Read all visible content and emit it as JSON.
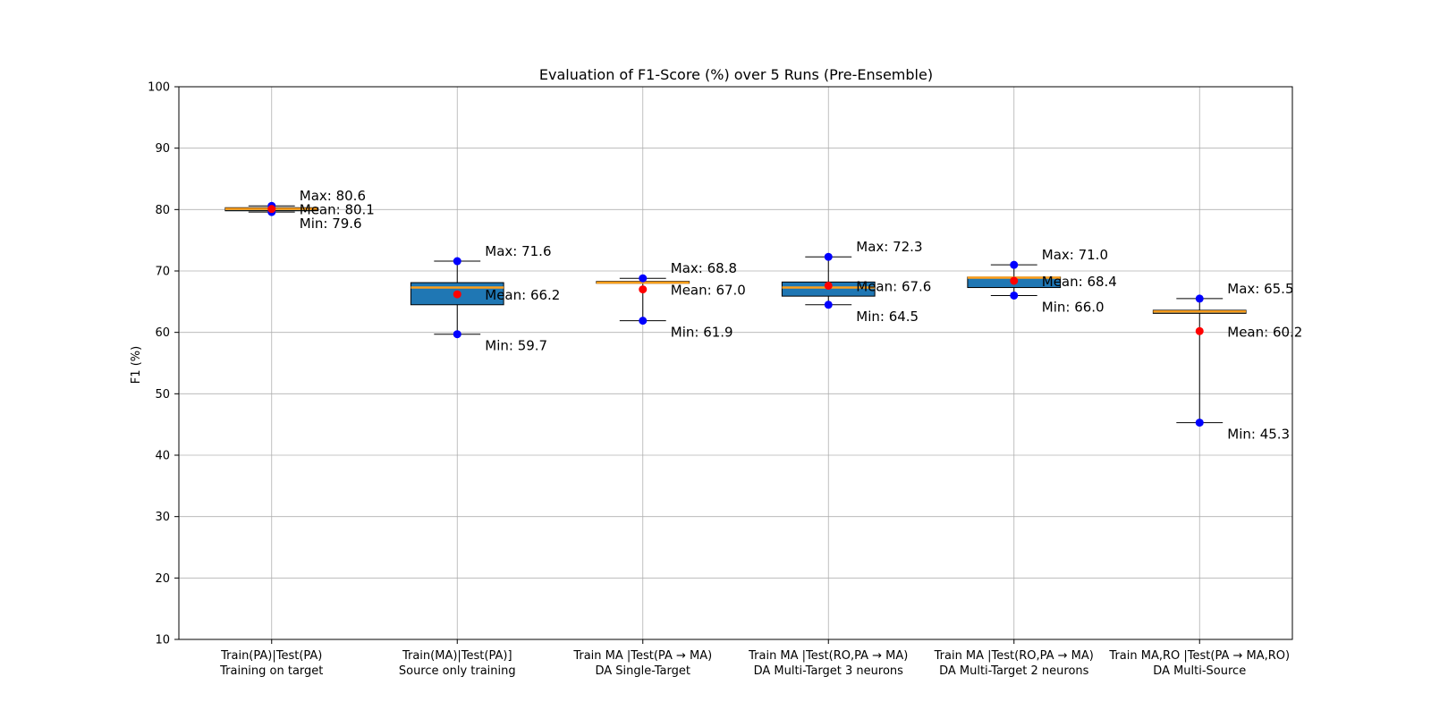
{
  "chart_data": {
    "type": "box",
    "title": "Evaluation of F1-Score (%) over 5 Runs (Pre-Ensemble)",
    "xlabel": "",
    "ylabel": "F1 (%)",
    "ylim": [
      10,
      100
    ],
    "yticks": [
      10,
      20,
      30,
      40,
      50,
      60,
      70,
      80,
      90,
      100
    ],
    "grid": true,
    "colors": {
      "box": "#1f77b4",
      "median": "#ff9f1a",
      "max_min_marker": "#0000ff",
      "mean_marker": "#ff0000",
      "whisker": "#000000"
    },
    "groups": [
      {
        "label_line1": "Train(PA)|Test(PA)",
        "label_line2": "Training on target",
        "q1": 79.8,
        "median": 80.1,
        "q3": 80.3,
        "mean": 80.1,
        "max": 80.6,
        "min": 79.6,
        "max_text": "Max: 80.6",
        "mean_text": "Mean: 80.1",
        "min_text": "Min: 79.6"
      },
      {
        "label_line1": "Train(MA)|Test(PA)]",
        "label_line2": "Source only training",
        "q1": 64.5,
        "median": 67.3,
        "q3": 68.1,
        "mean": 66.2,
        "max": 71.6,
        "min": 59.7,
        "max_text": "Max: 71.6",
        "mean_text": "Mean: 66.2",
        "min_text": "Min: 59.7"
      },
      {
        "label_line1": "Train MA |Test(PA → MA)",
        "label_line2": "DA Single-Target",
        "q1": 68.0,
        "median": 68.1,
        "q3": 68.3,
        "mean": 67.0,
        "max": 68.8,
        "min": 61.9,
        "max_text": "Max: 68.8",
        "mean_text": "Mean: 67.0",
        "min_text": "Min: 61.9"
      },
      {
        "label_line1": "Train MA |Test(RO,PA → MA)",
        "label_line2": "DA Multi-Target 3 neurons",
        "q1": 65.9,
        "median": 67.3,
        "q3": 68.2,
        "mean": 67.6,
        "max": 72.3,
        "min": 64.5,
        "max_text": "Max: 72.3",
        "mean_text": "Mean: 67.6",
        "min_text": "Min: 64.5"
      },
      {
        "label_line1": "Train MA |Test(RO,PA → MA)",
        "label_line2": "DA Multi-Target 2 neurons",
        "q1": 67.3,
        "median": 68.9,
        "q3": 69.0,
        "mean": 68.4,
        "max": 71.0,
        "min": 66.0,
        "max_text": "Max: 71.0",
        "mean_text": "Mean: 68.4",
        "min_text": "Min: 66.0"
      },
      {
        "label_line1": "Train MA,RO |Test(PA → MA,RO)",
        "label_line2": "DA Multi-Source",
        "q1": 63.1,
        "median": 63.4,
        "q3": 63.6,
        "mean": 60.2,
        "max": 65.5,
        "min": 45.3,
        "max_text": "Max: 65.5",
        "mean_text": "Mean: 60.2",
        "min_text": "Min: 45.3"
      }
    ]
  }
}
